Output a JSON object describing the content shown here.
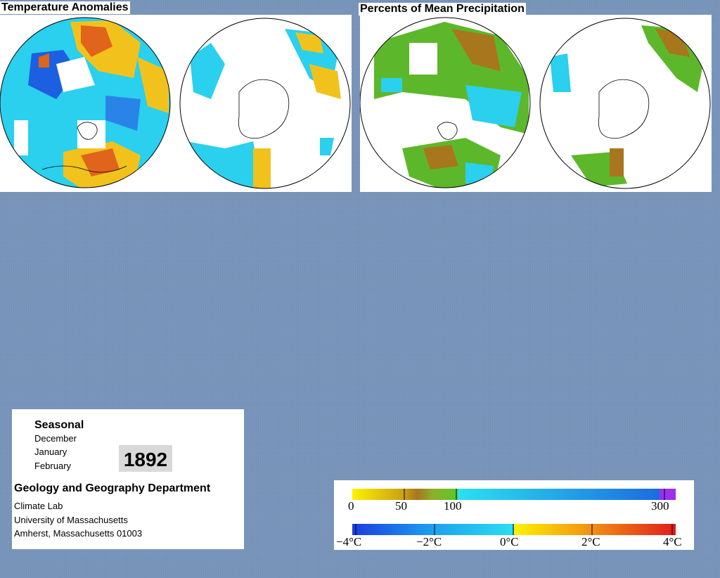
{
  "panels": {
    "temperature_title": "Temperature Anomalies",
    "precipitation_title": "Percents of Mean Precipitation"
  },
  "info": {
    "season": "Seasonal",
    "months": [
      "December",
      "January",
      "February"
    ],
    "year": "1892",
    "department": "Geology and Geography Department",
    "address": [
      "Climate Lab",
      "University of Massachusetts",
      "Amherst, Massachusetts 01003"
    ]
  },
  "legend": {
    "precip_ticks": [
      "0",
      "50",
      "100",
      "300"
    ],
    "temp_ticks": [
      "−4°C",
      "−2°C",
      "0°C",
      "2°C",
      "4°C"
    ]
  },
  "colors": {
    "background": "#7b96bb",
    "cold": "#1c5fe0",
    "cool": "#2ad0ee",
    "warm": "#f2c21c",
    "hot": "#e0641c",
    "dry": "#a8761c",
    "wet": "#5cb82a",
    "very_wet": "#9a30f0"
  }
}
